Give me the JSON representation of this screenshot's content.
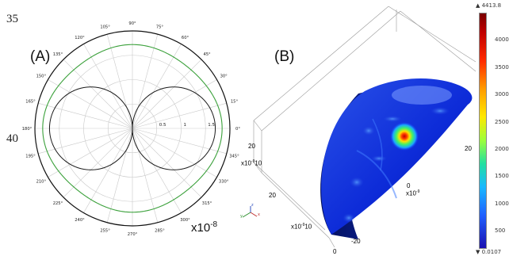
{
  "line_numbers": [
    "35",
    "40"
  ],
  "panel_a": {
    "label": "(A)",
    "angle_labels": [
      "0°",
      "15°",
      "30°",
      "45°",
      "60°",
      "75°",
      "90°",
      "105°",
      "120°",
      "135°",
      "150°",
      "165°",
      "180°",
      "195°",
      "210°",
      "225°",
      "240°",
      "255°",
      "270°",
      "285°",
      "300°",
      "315°",
      "330°",
      "345°"
    ],
    "radial_labels": [
      "0.5",
      "1",
      "1.5"
    ],
    "scale_base": "x10",
    "scale_exp": "-8",
    "colors": {
      "dipole": "#1a1a1a",
      "green": "#3aa03a",
      "grid": "#c9c9c9"
    }
  },
  "panel_b": {
    "label": "(B)",
    "axis_ticks": {
      "left_z": [
        "20",
        "10",
        "20"
      ],
      "left_z_exp_label": "x10",
      "left_z_exp": "-9",
      "bottom": [
        "10",
        "0",
        "-20"
      ],
      "bottom_exp_label": "x10",
      "bottom_exp": "-9",
      "x_mid": [
        "0"
      ],
      "x_mid_exp_label": "x10",
      "x_mid_exp": "-9",
      "x_right": [
        "20"
      ]
    },
    "colorbar": {
      "max_label": "▲ 4413.8",
      "min_label": "▼ 0.0107",
      "ticks": [
        "4000",
        "3500",
        "3000",
        "2500",
        "2000",
        "1500",
        "1000",
        "500"
      ]
    }
  }
}
